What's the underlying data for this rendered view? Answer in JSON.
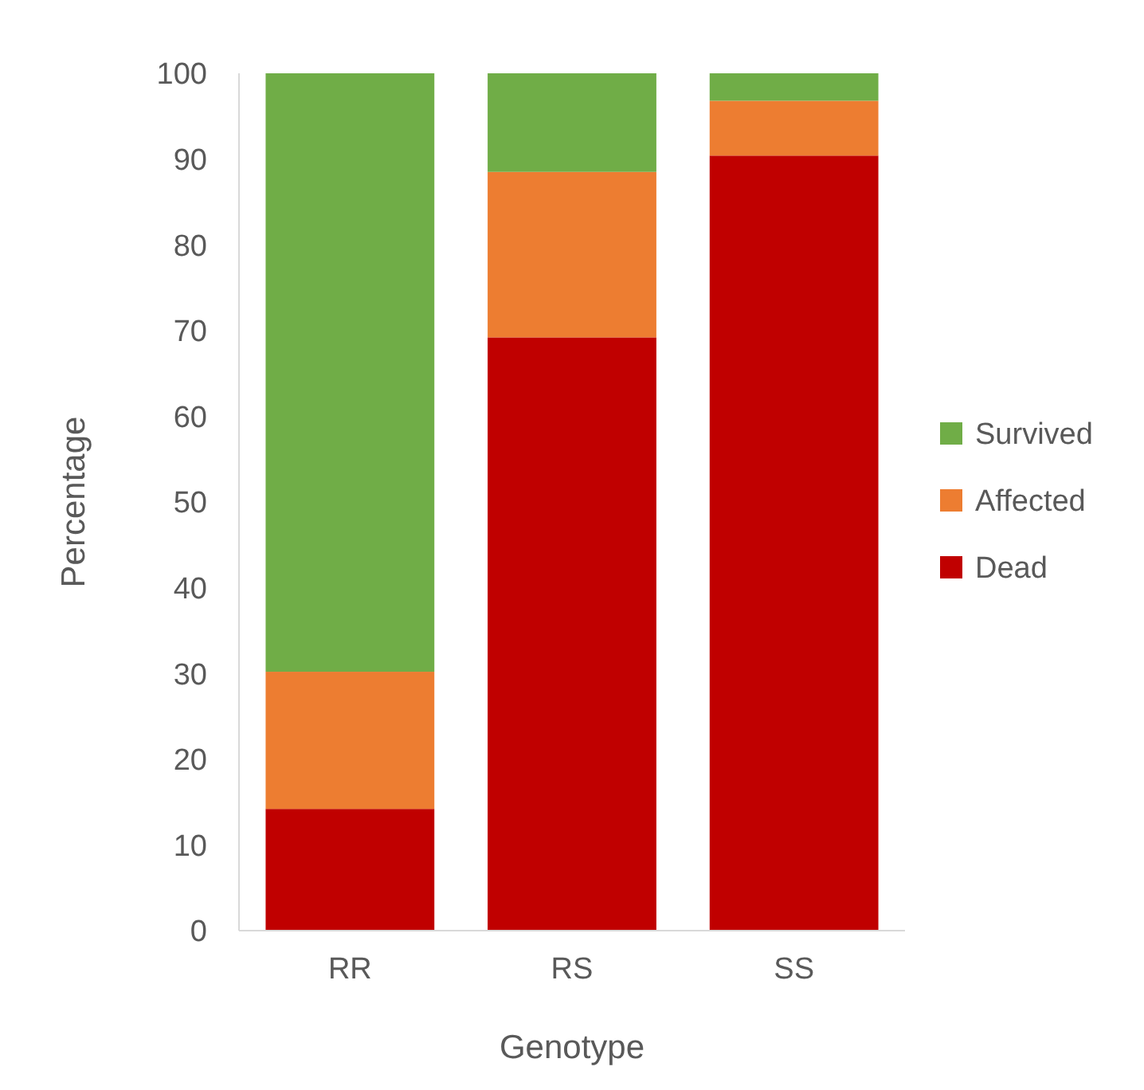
{
  "chart_data": {
    "type": "bar",
    "stacked": true,
    "xlabel": "Genotype",
    "ylabel": "Percentage",
    "categories": [
      "RR",
      "RS",
      "SS"
    ],
    "series": [
      {
        "name": "Dead",
        "color": "#c00000",
        "values": [
          14.2,
          69.2,
          90.4
        ]
      },
      {
        "name": "Affected",
        "color": "#ed7d31",
        "values": [
          16,
          19.3,
          6.4
        ]
      },
      {
        "name": "Survived",
        "color": "#70ad47",
        "values": [
          69.8,
          11.5,
          3.2
        ]
      }
    ],
    "ylim": [
      0,
      100
    ],
    "yticks": [
      0,
      10,
      20,
      30,
      40,
      50,
      60,
      70,
      80,
      90,
      100
    ],
    "grid": false,
    "legend": "right"
  }
}
